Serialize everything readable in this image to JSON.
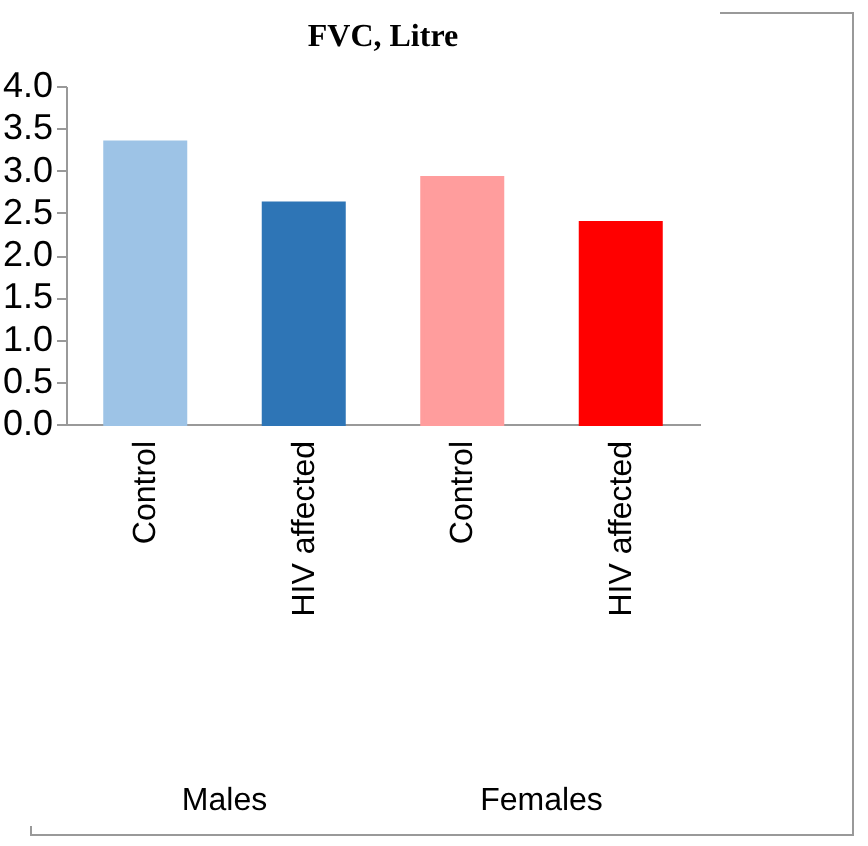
{
  "chart_data": {
    "type": "bar",
    "title": "FVC, Litre",
    "categories": [
      "Control",
      "HIV affected",
      "Control",
      "HIV affected"
    ],
    "values": [
      3.33,
      2.61,
      2.91,
      2.38
    ],
    "colors": [
      "#9dc3e6",
      "#2e75b6",
      "#ff9d9d",
      "#ff0000"
    ],
    "ylim": [
      0,
      4
    ],
    "yticks": [
      {
        "value": 0,
        "label": "0.0"
      },
      {
        "value": 0.5,
        "label": "0.5"
      },
      {
        "value": 1,
        "label": "1.0"
      },
      {
        "value": 1.5,
        "label": "1.5"
      },
      {
        "value": 2,
        "label": "2.0"
      },
      {
        "value": 2.5,
        "label": "2.5"
      },
      {
        "value": 3,
        "label": "3.0"
      },
      {
        "value": 3.5,
        "label": "3.5"
      },
      {
        "value": 4,
        "label": "4.0"
      }
    ],
    "annotations": [
      "Males",
      "Females"
    ]
  }
}
